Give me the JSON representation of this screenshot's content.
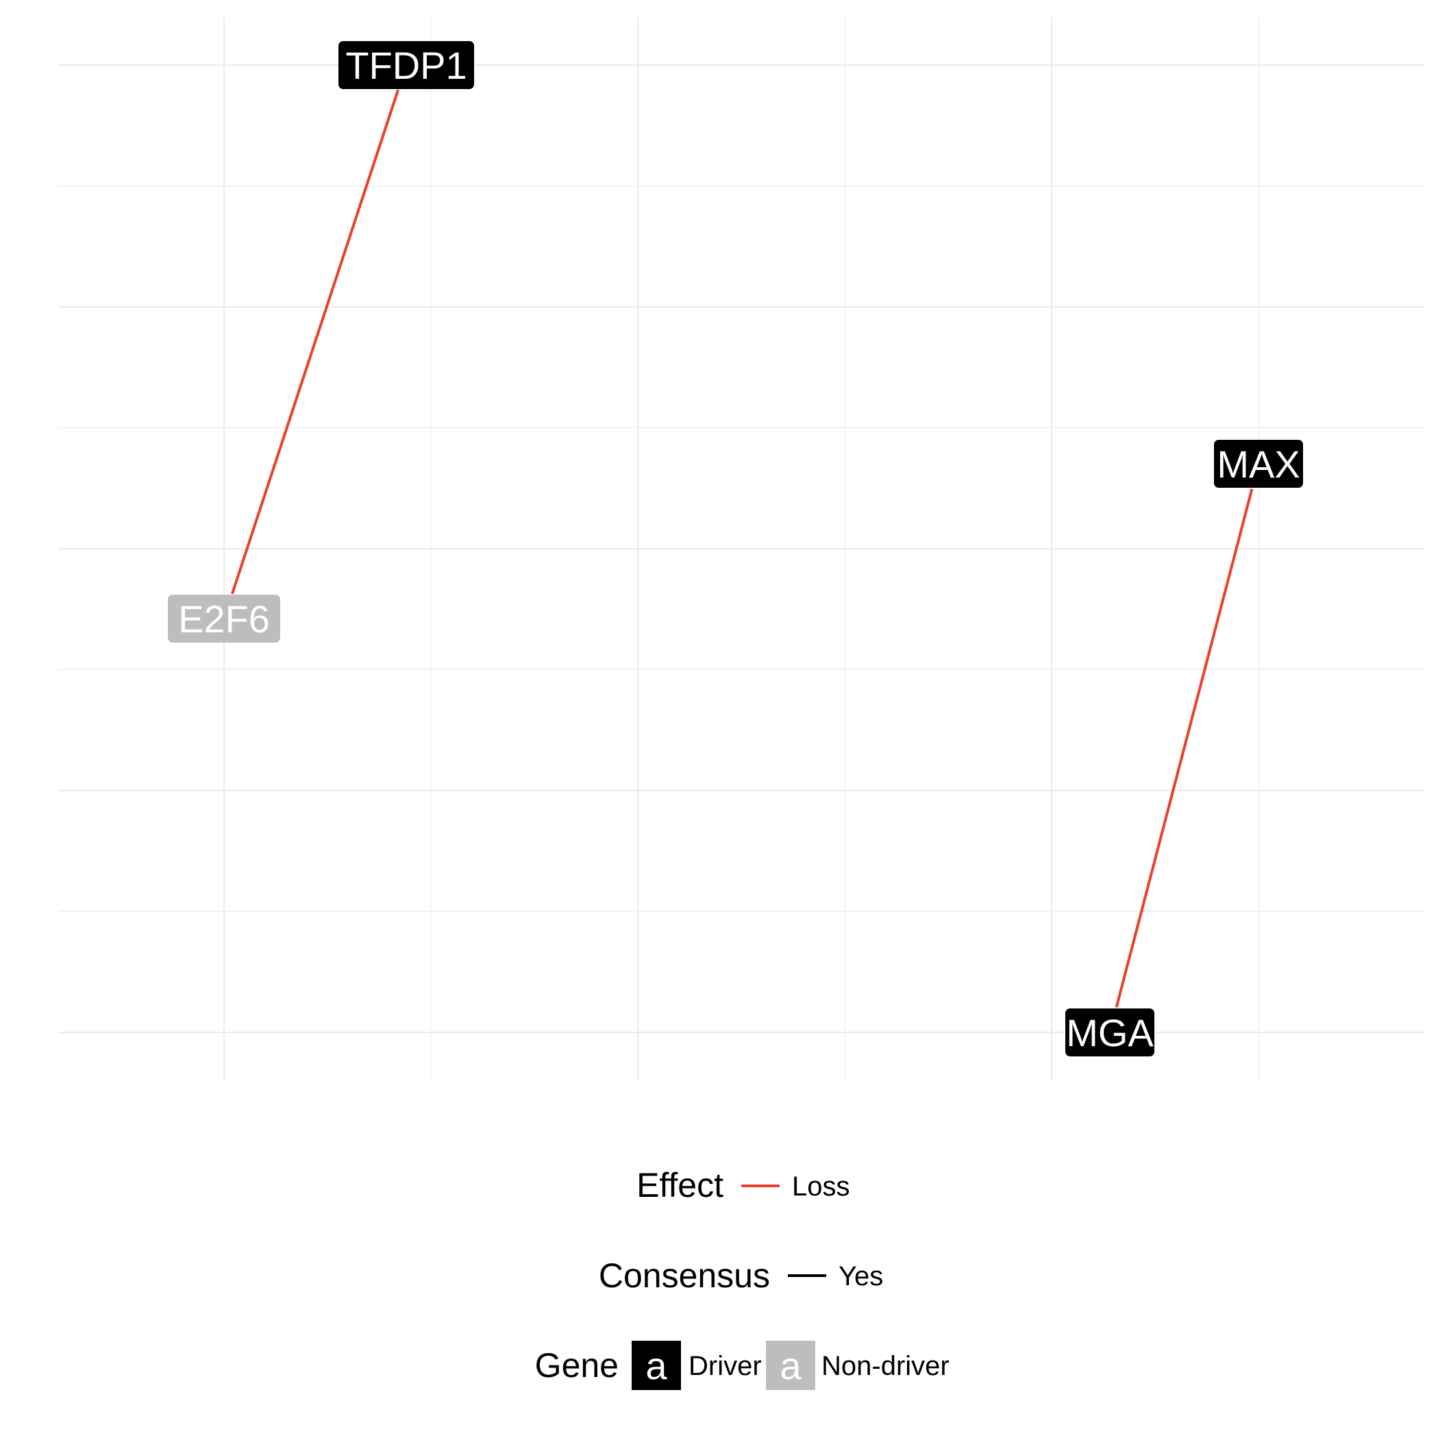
{
  "network": {
    "nodes": [
      {
        "id": "TFDP1",
        "label": "TFDP1",
        "type": "Driver"
      },
      {
        "id": "E2F6",
        "label": "E2F6",
        "type": "Non-driver"
      },
      {
        "id": "MAX",
        "label": "MAX",
        "type": "Driver"
      },
      {
        "id": "MGA",
        "label": "MGA",
        "type": "Driver"
      }
    ],
    "edges": [
      {
        "from": "E2F6",
        "to": "TFDP1",
        "effect": "Loss",
        "consensus": "Yes"
      },
      {
        "from": "MGA",
        "to": "MAX",
        "effect": "Loss",
        "consensus": "Yes"
      }
    ]
  },
  "legend": {
    "effect": {
      "title": "Effect",
      "items": [
        {
          "label": "Loss",
          "color": "#e8412a"
        }
      ]
    },
    "consensus": {
      "title": "Consensus",
      "items": [
        {
          "label": "Yes",
          "color": "#000000"
        }
      ]
    },
    "gene": {
      "title": "Gene",
      "key_glyph": "a",
      "items": [
        {
          "label": "Driver",
          "fill": "#000000",
          "text_color": "#ffffff"
        },
        {
          "label": "Non-driver",
          "fill": "#bdbdbd",
          "text_color": "#ffffff"
        }
      ]
    }
  },
  "colors": {
    "grid": "#ebebeb",
    "edge": "#e8412a",
    "driver": "#000000",
    "non_driver": "#bdbdbd"
  }
}
